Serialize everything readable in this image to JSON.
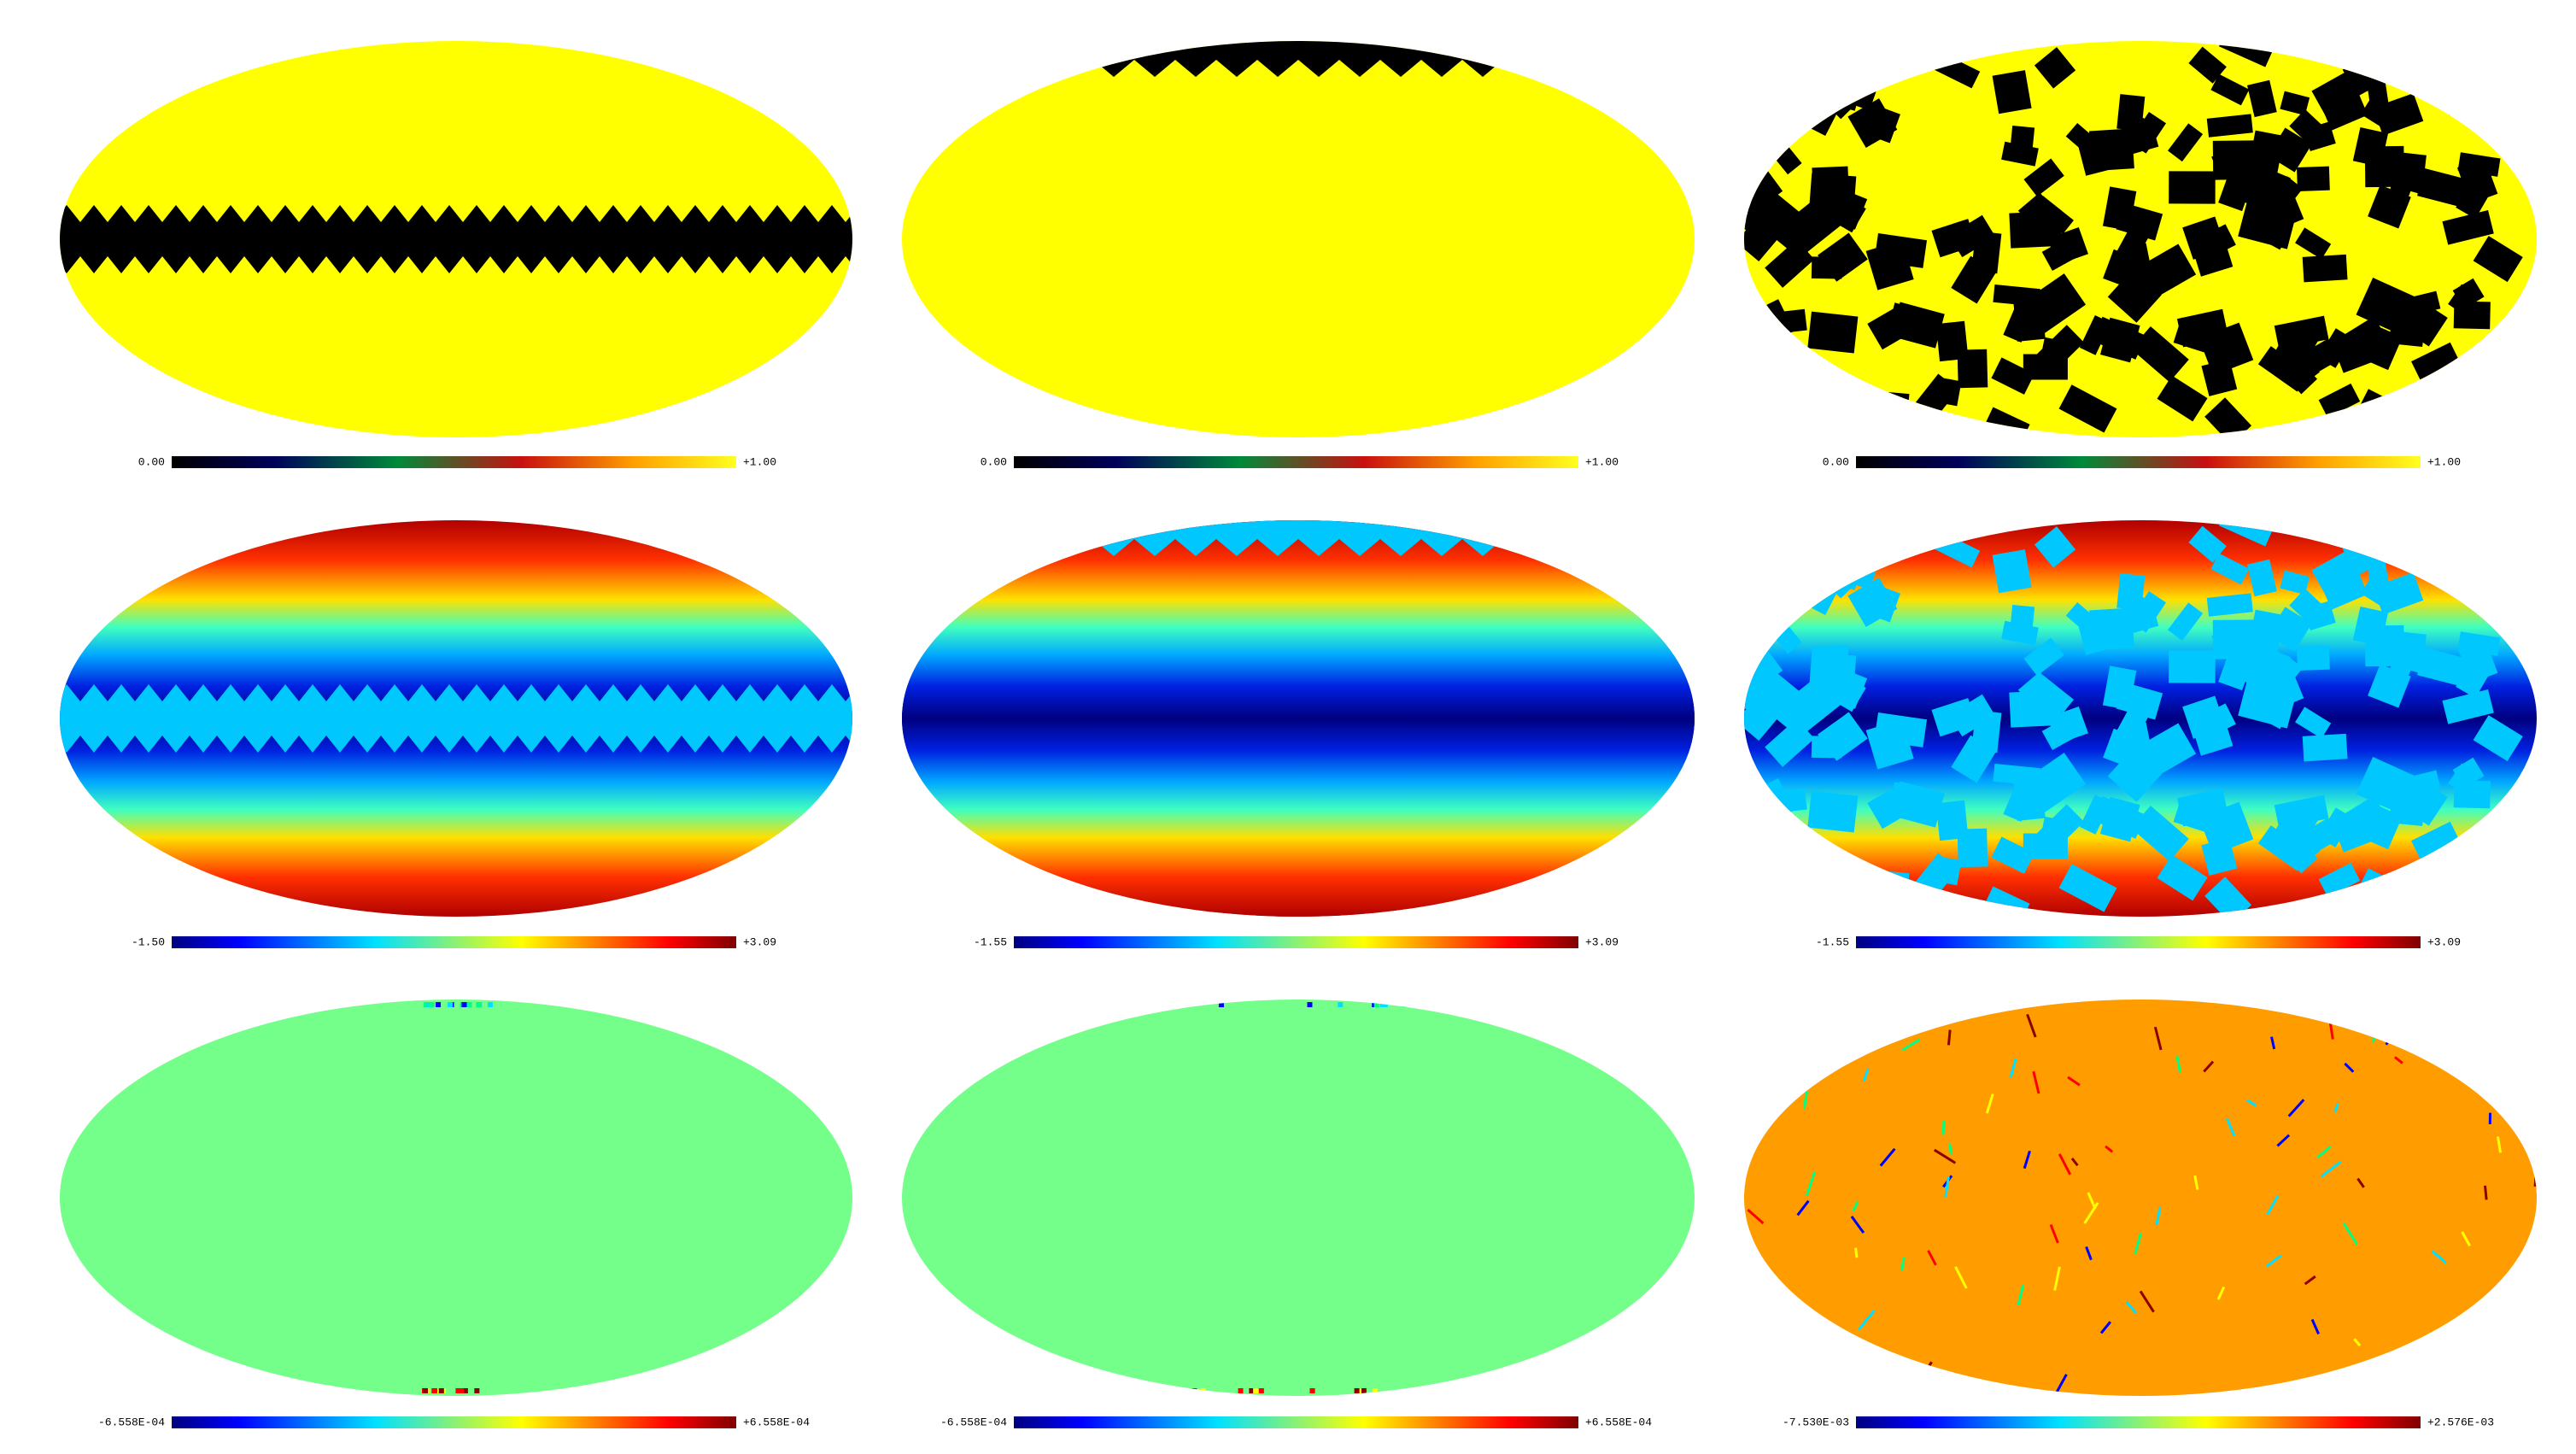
{
  "panels": [
    {
      "min": "0.00",
      "max": "+1.00"
    },
    {
      "min": "0.00",
      "max": "+1.00"
    },
    {
      "min": "0.00",
      "max": "+1.00"
    },
    {
      "min": "-1.50",
      "max": "+3.09"
    },
    {
      "min": "-1.55",
      "max": "+3.09"
    },
    {
      "min": "-1.55",
      "max": "+3.09"
    },
    {
      "min": "-6.558E-04",
      "max": "+6.558E-04"
    },
    {
      "min": "-6.558E-04",
      "max": "+6.558E-04"
    },
    {
      "min": "-7.530E-03",
      "max": "+2.576E-03"
    }
  ]
}
